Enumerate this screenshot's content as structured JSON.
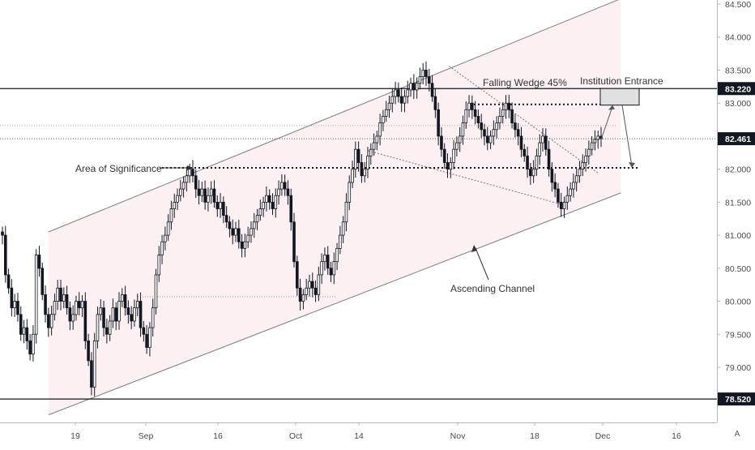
{
  "chart_data": {
    "type": "candlestick",
    "y_axis": {
      "ticks": [
        "84.500",
        "84.000",
        "83.500",
        "83.000",
        "82.500",
        "82.000",
        "81.500",
        "81.000",
        "80.500",
        "80.000",
        "79.500",
        "79.000"
      ],
      "range": [
        78.28,
        84.55
      ]
    },
    "x_axis": {
      "ticks": [
        "19",
        "Sep",
        "16",
        "Oct",
        "14",
        "Nov",
        "18",
        "Dec",
        "16"
      ]
    },
    "price_tags": [
      {
        "value": "83.220",
        "kind": "resistance-line"
      },
      {
        "value": "82.461",
        "kind": "last-price"
      },
      {
        "value": "78.520",
        "kind": "support-line"
      }
    ],
    "annotations": {
      "area_of_significance": "Area of Significance",
      "falling_wedge": "Falling Wedge 45%",
      "institution_entrance": "Institution Entrance",
      "ascending_channel": "Ascending Channel"
    },
    "levels": {
      "resistance": 83.22,
      "last_price": 82.461,
      "support": 78.52,
      "significance": 82.02,
      "wedge_top": 82.98,
      "reference": 82.66,
      "mid_sep": 80.07
    },
    "channel": {
      "upper": {
        "from": [
          0,
          81.05
        ],
        "to": [
          29,
          84.58
        ]
      },
      "lower": {
        "from": [
          0,
          78.28
        ],
        "to": [
          29,
          81.64
        ]
      }
    },
    "wedge": {
      "upper": {
        "from": [
          20.3,
          83.56
        ],
        "to": [
          27.9,
          81.93
        ]
      },
      "lower": {
        "from": [
          16.2,
          82.28
        ],
        "to": [
          26.2,
          81.45
        ]
      }
    },
    "projection": {
      "entry": 82.45,
      "target_zone": [
        82.97,
        83.22
      ],
      "exit": 82.02
    },
    "closes": [
      81.0,
      80.4,
      80.2,
      79.9,
      80.0,
      79.8,
      79.5,
      79.6,
      79.4,
      79.2,
      79.5,
      80.7,
      80.5,
      80.1,
      79.8,
      79.6,
      79.8,
      80.0,
      80.2,
      80.0,
      80.1,
      79.9,
      79.7,
      79.8,
      80.0,
      79.9,
      80.0,
      79.4,
      79.1,
      78.7,
      79.4,
      79.8,
      79.9,
      79.6,
      79.5,
      79.7,
      79.9,
      79.7,
      80.0,
      80.1,
      79.9,
      79.8,
      79.7,
      79.9,
      80.0,
      79.6,
      79.5,
      79.3,
      79.6,
      79.9,
      80.4,
      80.7,
      80.9,
      81.0,
      81.2,
      81.4,
      81.5,
      81.6,
      81.7,
      81.8,
      81.9,
      82.0,
      81.9,
      81.7,
      81.6,
      81.7,
      81.5,
      81.6,
      81.7,
      81.5,
      81.4,
      81.5,
      81.3,
      81.2,
      81.1,
      81.0,
      81.1,
      80.9,
      80.8,
      80.9,
      81.0,
      81.1,
      81.2,
      81.3,
      81.4,
      81.5,
      81.6,
      81.5,
      81.4,
      81.6,
      81.7,
      81.8,
      81.7,
      81.6,
      81.2,
      80.6,
      80.2,
      80.0,
      80.1,
      80.2,
      80.3,
      80.2,
      80.1,
      80.4,
      80.6,
      80.7,
      80.5,
      80.4,
      80.6,
      80.8,
      81.0,
      81.2,
      81.5,
      81.8,
      82.0,
      82.3,
      82.1,
      81.9,
      82.0,
      82.2,
      82.3,
      82.4,
      82.5,
      82.7,
      82.8,
      82.9,
      83.0,
      83.1,
      83.2,
      83.1,
      83.0,
      83.1,
      83.2,
      83.3,
      83.2,
      83.3,
      83.4,
      83.5,
      83.4,
      83.3,
      83.1,
      82.9,
      82.5,
      82.3,
      82.1,
      82.0,
      82.1,
      82.3,
      82.4,
      82.5,
      82.7,
      82.9,
      83.0,
      82.9,
      82.8,
      82.7,
      82.6,
      82.5,
      82.4,
      82.5,
      82.6,
      82.7,
      82.8,
      82.9,
      83.0,
      82.9,
      82.7,
      82.6,
      82.5,
      82.3,
      82.2,
      82.0,
      81.9,
      82.0,
      82.2,
      82.4,
      82.5,
      82.3,
      82.0,
      81.8,
      81.7,
      81.5,
      81.4,
      81.5,
      81.6,
      81.7,
      81.8,
      81.9,
      82.0,
      82.1,
      82.2,
      82.3,
      82.4,
      82.45,
      82.5,
      82.46
    ]
  }
}
